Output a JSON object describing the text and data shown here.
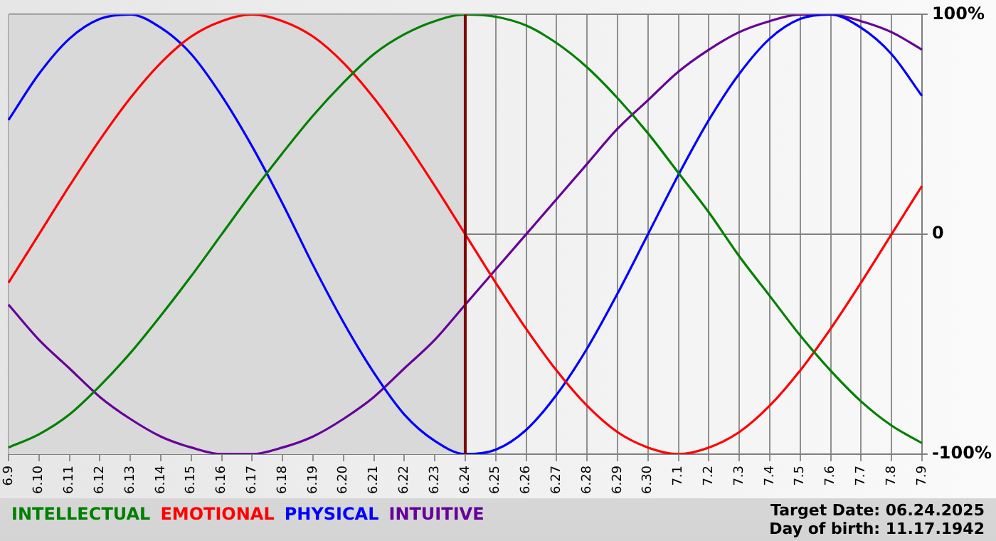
{
  "chart_data": {
    "type": "line",
    "categories": [
      "6.9",
      "6.10",
      "6.11",
      "6.12",
      "6.13",
      "6.14",
      "6.15",
      "6.16",
      "6.17",
      "6.18",
      "6.19",
      "6.20",
      "6.21",
      "6.22",
      "6.23",
      "6.24",
      "6.25",
      "6.26",
      "6.27",
      "6.28",
      "6.29",
      "6.30",
      "7.1",
      "7.2",
      "7.3",
      "7.4",
      "7.5",
      "7.6",
      "7.7",
      "7.8",
      "7.9"
    ],
    "series": [
      {
        "name": "INTELLECTUAL",
        "color": "#008000",
        "values": [
          -97,
          -91,
          -82,
          -69,
          -54,
          -37,
          -19,
          0,
          19,
          37,
          54,
          69,
          82,
          91,
          97,
          100,
          99,
          95,
          87,
          76,
          62,
          46,
          28,
          10,
          -10,
          -28,
          -46,
          -62,
          -76,
          -87,
          -95
        ]
      },
      {
        "name": "EMOTIONAL",
        "color": "#ff0000",
        "values": [
          -22,
          0,
          22,
          43,
          62,
          78,
          90,
          97,
          100,
          97,
          90,
          78,
          62,
          43,
          22,
          0,
          -22,
          -43,
          -62,
          -78,
          -90,
          -97,
          -100,
          -97,
          -90,
          -78,
          -62,
          -43,
          -22,
          0,
          22
        ]
      },
      {
        "name": "PHYSICAL",
        "color": "#0000ff",
        "values": [
          52,
          73,
          89,
          98,
          100,
          94,
          82,
          63,
          40,
          14,
          -14,
          -40,
          -63,
          -82,
          -94,
          -100,
          -98,
          -89,
          -73,
          -52,
          -27,
          0,
          27,
          52,
          73,
          89,
          98,
          100,
          94,
          82,
          63
        ]
      },
      {
        "name": "INTUITIVE",
        "color": "#660099",
        "values": [
          -32,
          -48,
          -61,
          -74,
          -84,
          -92,
          -97,
          -100,
          -100,
          -97,
          -92,
          -84,
          -74,
          -61,
          -48,
          -32,
          -16,
          0,
          16,
          32,
          48,
          61,
          74,
          84,
          92,
          97,
          100,
          100,
          97,
          92,
          84
        ]
      }
    ],
    "ylim": [
      -100,
      100
    ],
    "yticks": [
      {
        "value": 100,
        "label": "100%"
      },
      0,
      {
        "value": -100,
        "label": "-100%"
      }
    ],
    "grid": true,
    "legend": "bottom",
    "marker": "none",
    "line_style": "solid",
    "ref_lines": [
      {
        "axis": "x",
        "value": "6.24",
        "color": "#800000"
      }
    ],
    "bands": [
      {
        "axis": "x",
        "from": "6.9",
        "to": "6.24",
        "color": "#d9d9d9"
      }
    ],
    "annotations": [
      "Target Date: 06.24.2025",
      "Day of birth: 11.17.1942"
    ]
  }
}
